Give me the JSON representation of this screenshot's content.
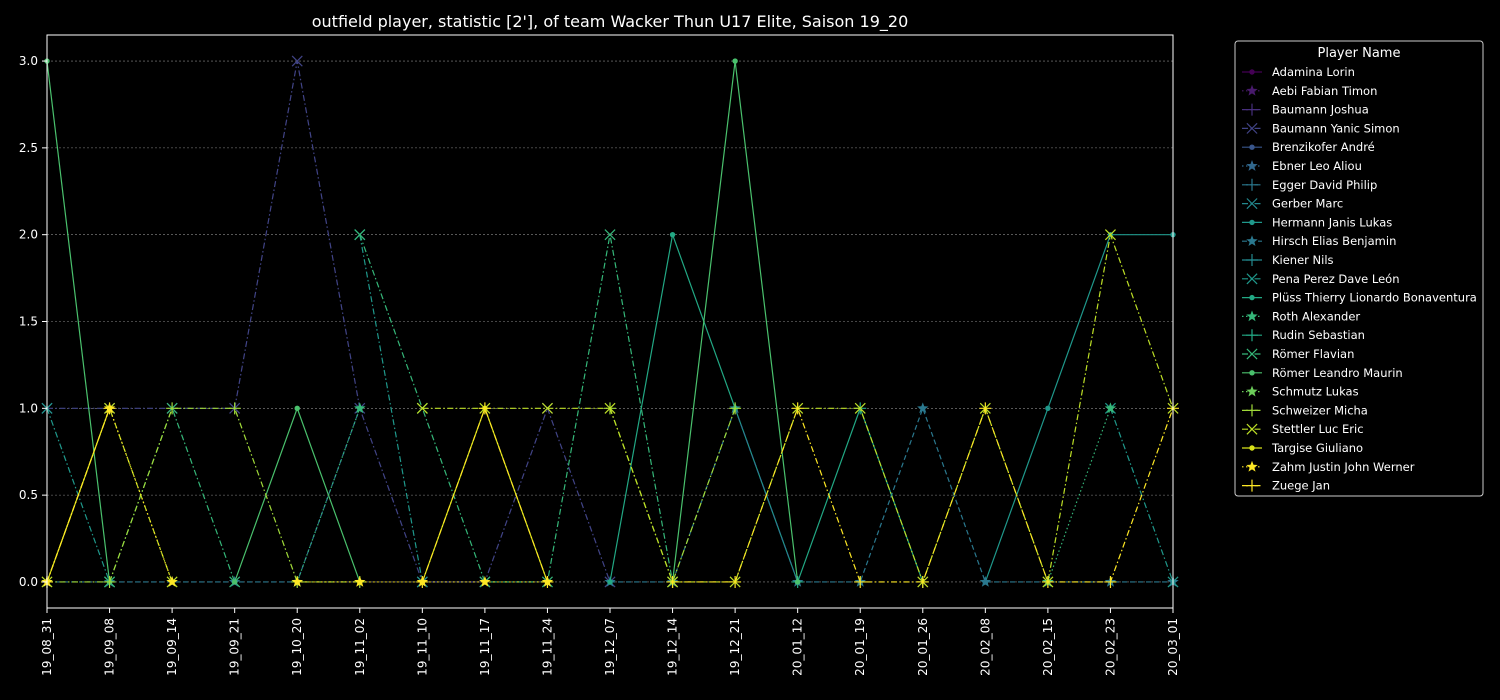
{
  "chart_data": {
    "type": "line",
    "title": "outfield player, statistic [2'], of team Wacker Thun U17 Elite, Saison 19_20",
    "xlabel": "",
    "ylabel": "",
    "ylim": [
      -0.15,
      3.15
    ],
    "yticks": [
      0.0,
      0.5,
      1.0,
      1.5,
      2.0,
      2.5,
      3.0
    ],
    "ytick_labels": [
      "0.0",
      "0.5",
      "1.0",
      "1.5",
      "2.0",
      "2.5",
      "3.0"
    ],
    "grid": "horizontal dotted",
    "legend_title": "Player Name",
    "legend_position": "outside-right",
    "categories": [
      "19_08_31",
      "19_09_08",
      "19_09_14",
      "19_09_21",
      "19_10_20",
      "19_11_02",
      "19_11_10",
      "19_11_17",
      "19_11_24",
      "19_12_07",
      "19_12_14",
      "19_12_21",
      "20_01_12",
      "20_01_19",
      "20_01_26",
      "20_02_08",
      "20_02_15",
      "20_02_23",
      "20_03_01"
    ],
    "series": [
      {
        "name": "Adamina Lorin",
        "color": "#440154",
        "marker": "circle",
        "dash": "solid",
        "values": [
          null,
          null,
          null,
          null,
          null,
          null,
          null,
          null,
          null,
          null,
          null,
          null,
          null,
          null,
          null,
          null,
          null,
          null,
          null
        ]
      },
      {
        "name": "Aebi Fabian Timon",
        "color": "#481a6c",
        "marker": "star",
        "dash": "dotted",
        "values": [
          null,
          null,
          null,
          null,
          null,
          null,
          null,
          null,
          null,
          null,
          null,
          null,
          null,
          null,
          null,
          null,
          null,
          null,
          null
        ]
      },
      {
        "name": "Baumann Joshua",
        "color": "#472f7d",
        "marker": "plus",
        "dash": "dashdot",
        "values": [
          null,
          null,
          null,
          null,
          null,
          null,
          null,
          null,
          null,
          null,
          null,
          null,
          null,
          null,
          null,
          null,
          null,
          null,
          null
        ]
      },
      {
        "name": "Baumann Yanic Simon",
        "color": "#414487",
        "marker": "x",
        "dash": "dashdot",
        "values": [
          1,
          1,
          1,
          1,
          3,
          1,
          0,
          0,
          1,
          0,
          null,
          null,
          null,
          null,
          null,
          null,
          null,
          null,
          null
        ]
      },
      {
        "name": "Brenzikofer André",
        "color": "#39568c",
        "marker": "circle",
        "dash": "solid",
        "values": [
          null,
          null,
          null,
          null,
          null,
          null,
          null,
          null,
          null,
          null,
          null,
          null,
          null,
          null,
          null,
          null,
          null,
          null,
          null
        ]
      },
      {
        "name": "Ebner Leo Aliou",
        "color": "#31688e",
        "marker": "star",
        "dash": "dotted",
        "values": [
          null,
          null,
          null,
          null,
          null,
          null,
          null,
          null,
          null,
          null,
          null,
          null,
          null,
          null,
          null,
          null,
          null,
          null,
          null
        ]
      },
      {
        "name": "Egger David Philip",
        "color": "#2a788e",
        "marker": "plus",
        "dash": "dashdot",
        "values": [
          null,
          null,
          null,
          null,
          null,
          null,
          null,
          null,
          null,
          null,
          null,
          null,
          null,
          null,
          null,
          null,
          null,
          null,
          null
        ]
      },
      {
        "name": "Gerber Marc",
        "color": "#23888e",
        "marker": "x",
        "dash": "dashdot",
        "values": [
          null,
          null,
          null,
          null,
          null,
          null,
          null,
          null,
          null,
          null,
          null,
          null,
          null,
          null,
          null,
          null,
          null,
          null,
          null
        ]
      },
      {
        "name": "Hermann Janis Lukas",
        "color": "#1f988b",
        "marker": "circle",
        "dash": "solid",
        "values": [
          null,
          null,
          null,
          null,
          null,
          null,
          null,
          null,
          null,
          null,
          null,
          1,
          0,
          null,
          null,
          0,
          1,
          2,
          2
        ]
      },
      {
        "name": "Hirsch Elias Benjamin",
        "color": "#2a788e",
        "marker": "star",
        "dash": "dashed",
        "values": [
          0,
          0,
          0,
          0,
          0,
          1,
          null,
          null,
          null,
          0,
          0,
          1,
          0,
          0,
          1,
          0,
          0,
          0,
          0
        ]
      },
      {
        "name": "Kiener Nils",
        "color": "#23888e",
        "marker": "plus",
        "dash": "solid",
        "values": [
          null,
          null,
          null,
          null,
          null,
          null,
          null,
          null,
          null,
          null,
          null,
          null,
          null,
          null,
          null,
          null,
          null,
          null,
          null
        ]
      },
      {
        "name": "Pena Perez Dave León",
        "color": "#1f988b",
        "marker": "x",
        "dash": "dashdot",
        "values": [
          1,
          0,
          null,
          null,
          null,
          2,
          0,
          null,
          null,
          null,
          null,
          null,
          null,
          null,
          null,
          null,
          null,
          1,
          0
        ]
      },
      {
        "name": "Plüss Thierry Lionardo Bonaventura",
        "color": "#22a884",
        "marker": "circle",
        "dash": "solid",
        "values": [
          null,
          null,
          null,
          null,
          null,
          null,
          null,
          null,
          null,
          0,
          2,
          1,
          null,
          null,
          null,
          null,
          null,
          null,
          null
        ]
      },
      {
        "name": "Roth Alexander",
        "color": "#35b779",
        "marker": "star",
        "dash": "dotted",
        "values": [
          null,
          null,
          null,
          null,
          0,
          1,
          null,
          null,
          null,
          null,
          null,
          null,
          null,
          null,
          null,
          null,
          0,
          1,
          null
        ]
      },
      {
        "name": "Rudin Sebastian",
        "color": "#22a884",
        "marker": "plus",
        "dash": "solid",
        "values": [
          null,
          null,
          null,
          null,
          null,
          null,
          null,
          null,
          null,
          null,
          null,
          null,
          0,
          1,
          0,
          null,
          null,
          null,
          null
        ]
      },
      {
        "name": "Römer Flavian",
        "color": "#35b779",
        "marker": "x",
        "dash": "dashdot",
        "values": [
          null,
          0,
          1,
          0,
          null,
          2,
          1,
          0,
          0,
          2,
          0,
          null,
          null,
          null,
          null,
          null,
          null,
          null,
          null
        ]
      },
      {
        "name": "Römer Leandro Maurin",
        "color": "#4ac16d",
        "marker": "circle",
        "dash": "solid",
        "values": [
          3,
          0,
          null,
          0,
          1,
          0,
          null,
          null,
          null,
          null,
          0,
          3,
          0,
          null,
          null,
          null,
          null,
          null,
          null
        ]
      },
      {
        "name": "Schmutz Lukas",
        "color": "#6ccd5a",
        "marker": "star",
        "dash": "dotted",
        "values": [
          null,
          null,
          null,
          null,
          null,
          null,
          null,
          null,
          null,
          null,
          null,
          null,
          null,
          null,
          null,
          null,
          null,
          null,
          null
        ]
      },
      {
        "name": "Schweizer Micha",
        "color": "#a0da39",
        "marker": "plus",
        "dash": "dashdot",
        "values": [
          0,
          0,
          1,
          1,
          0,
          0,
          null,
          null,
          null,
          1,
          0,
          1,
          null,
          null,
          null,
          null,
          null,
          null,
          null
        ]
      },
      {
        "name": "Stettler Luc Eric",
        "color": "#bddf26",
        "marker": "x",
        "dash": "dashdot",
        "values": [
          0,
          1,
          0,
          null,
          null,
          null,
          1,
          1,
          1,
          1,
          0,
          0,
          1,
          1,
          0,
          1,
          0,
          2,
          1
        ]
      },
      {
        "name": "Targise Giuliano",
        "color": "#d8e219",
        "marker": "circle",
        "dash": "solid",
        "values": [
          0,
          1,
          null,
          null,
          null,
          null,
          0,
          1,
          0,
          null,
          null,
          null,
          null,
          null,
          null,
          null,
          null,
          null,
          null
        ]
      },
      {
        "name": "Zahm Justin John Werner",
        "color": "#fde725",
        "marker": "star",
        "dash": "dotted",
        "values": [
          0,
          1,
          0,
          null,
          0,
          0,
          0,
          0,
          0,
          null,
          null,
          null,
          null,
          null,
          null,
          null,
          null,
          null,
          null
        ]
      },
      {
        "name": "Zuege Jan",
        "color": "#fde725",
        "marker": "plus",
        "dash": "dashdot",
        "values": [
          0,
          1,
          null,
          null,
          null,
          null,
          0,
          1,
          0,
          null,
          0,
          0,
          1,
          0,
          0,
          1,
          0,
          0,
          1
        ]
      }
    ]
  }
}
